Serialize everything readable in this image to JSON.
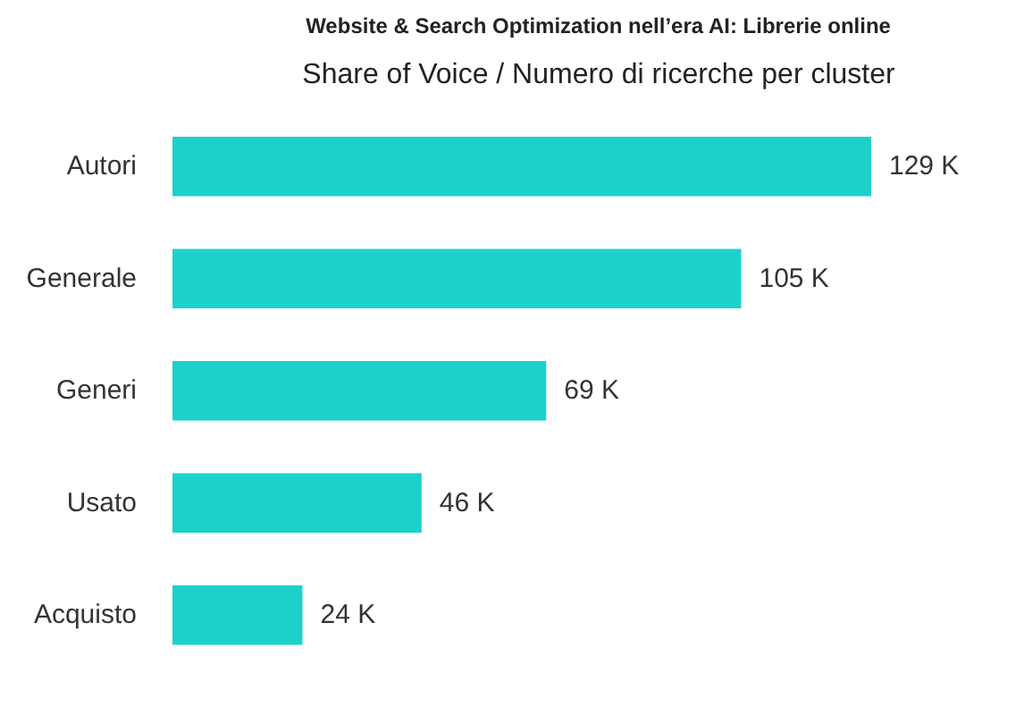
{
  "chart_data": {
    "type": "bar",
    "orientation": "horizontal",
    "title": "Website & Search Optimization nell’era AI: Librerie online",
    "subtitle": "Share of Voice / Numero di ricerche per cluster",
    "categories": [
      "Autori",
      "Generale",
      "Generi",
      "Usato",
      "Acquisto"
    ],
    "values": [
      129,
      105,
      69,
      46,
      24
    ],
    "value_labels": [
      "129 K",
      "105 K",
      "69 K",
      "46 K",
      "24 K"
    ],
    "color": "#1dd1cb",
    "grid": false
  }
}
